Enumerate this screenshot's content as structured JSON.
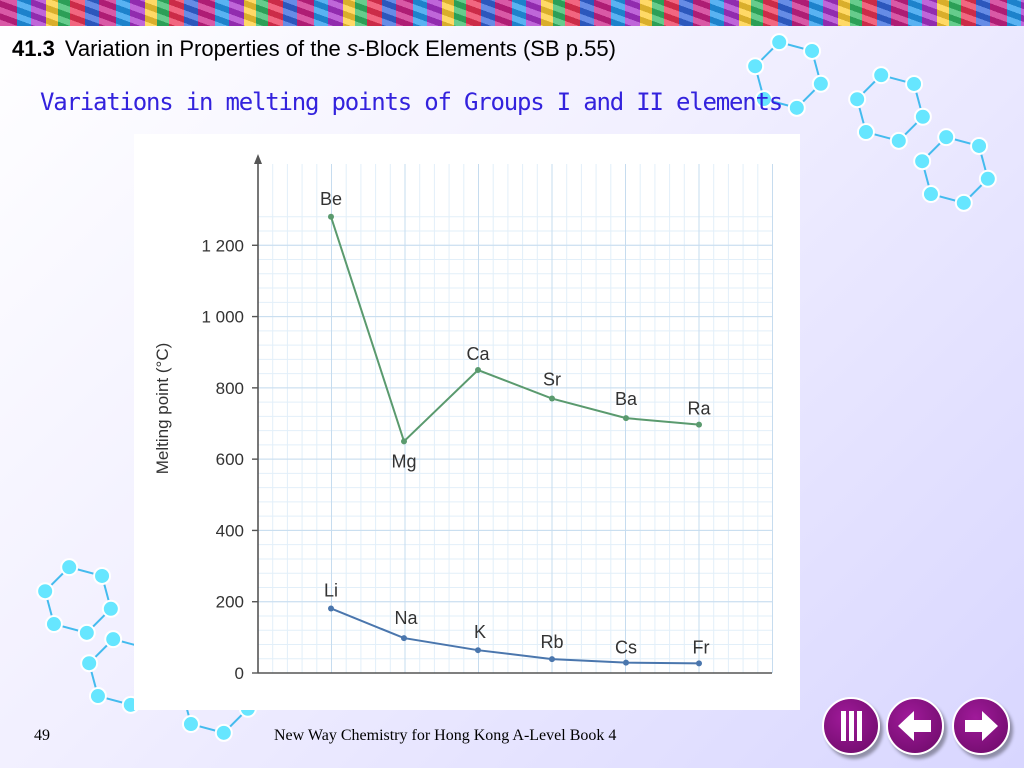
{
  "slide": {
    "section_number": "41.3",
    "title_part1": "Variation in Properties of the ",
    "title_italic": "s",
    "title_part2": "-Block Elements (SB p.55)",
    "subtitle": "Variations in melting points of Groups I and II elements"
  },
  "footer": {
    "page": "49",
    "book": "New Way Chemistry for Hong Kong A-Level Book 4",
    "page_small": "49"
  },
  "nav": {
    "first_icon": "first-slide-icon",
    "prev_icon": "arrow-left-icon",
    "next_icon": "arrow-right-icon"
  },
  "colors": {
    "subtitle": "#3322dd",
    "group2_line": "#5a9a6e",
    "group1_line": "#4a76ad",
    "grid": "#cfe3f3",
    "nav_button": "#8a1284"
  },
  "chart_data": {
    "type": "line",
    "title": "",
    "xlabel": "",
    "ylabel": "Melting point (°C)",
    "ylim": [
      0,
      1400
    ],
    "yticks": [
      0,
      200,
      400,
      600,
      800,
      1000,
      1200
    ],
    "ytick_labels": [
      "0",
      "200",
      "400",
      "600",
      "800",
      "1 000",
      "1 200"
    ],
    "grid": true,
    "series": [
      {
        "name": "",
        "color": "#5a9a6e",
        "labels": [
          "Be",
          "Mg",
          "Ca",
          "Sr",
          "Ba",
          "Ra"
        ],
        "values": [
          1280,
          650,
          850,
          770,
          715,
          697
        ]
      },
      {
        "name": "",
        "color": "#4a76ad",
        "labels": [
          "Li",
          "Na",
          "K",
          "Rb",
          "Cs",
          "Fr"
        ],
        "values": [
          181,
          98,
          64,
          39,
          29,
          27
        ]
      }
    ]
  }
}
